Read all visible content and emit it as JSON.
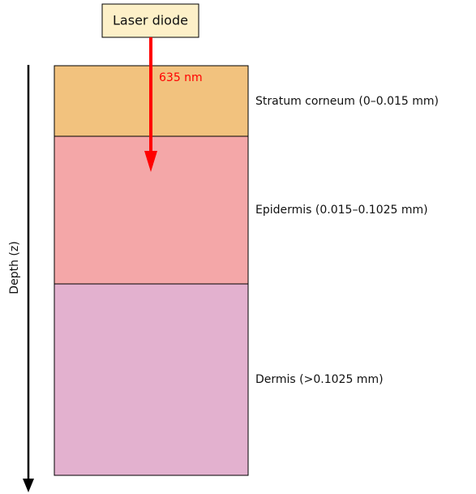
{
  "source": {
    "label": "Laser diode"
  },
  "beam": {
    "wavelength": "635 nm"
  },
  "axis": {
    "label": "Depth (z)"
  },
  "layers": [
    {
      "label": "Stratum corneum (0–0.015 mm)"
    },
    {
      "label": "Epidermis (0.015–0.1025 mm)"
    },
    {
      "label": "Dermis (>0.1025 mm)"
    }
  ]
}
